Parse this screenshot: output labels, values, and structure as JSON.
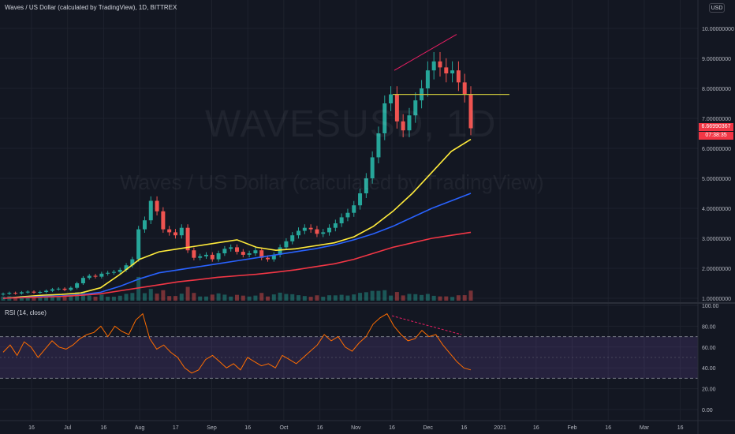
{
  "header": {
    "title": "Waves / US Dollar (calculated by TradingView), 1D, BITTREX",
    "currency": "USD"
  },
  "watermark": {
    "symbol": "WAVESUSD, 1D",
    "description": "Waves / US Dollar (calculated by TradingView)"
  },
  "price_label": "6.66990367",
  "countdown_label": "07:38:35",
  "rsi_panel": {
    "title": "RSI (14, close)"
  },
  "colors": {
    "background": "#131722",
    "up": "#26a69a",
    "down": "#ef5350",
    "ma_fast": "#ffeb3b",
    "ma_mid": "#2962ff",
    "ma_slow": "#f23645",
    "rsi_line": "#ff6d00",
    "rsi_band": "#7e57c2",
    "divergence": "#e91e63"
  },
  "chart_data": [
    {
      "type": "candlestick",
      "title": "Waves / US Dollar (calculated by TradingView), 1D, BITTREX",
      "x_ticks": [
        "16",
        "Jul",
        "16",
        "Aug",
        "17",
        "Sep",
        "16",
        "Oct",
        "16",
        "Nov",
        "16",
        "Dec",
        "16",
        "2021",
        "16",
        "Feb",
        "16",
        "Mar",
        "16"
      ],
      "y_ticks": [
        "10.00000000",
        "9.00000000",
        "8.00000000",
        "7.00000000",
        "6.00000000",
        "5.00000000",
        "4.00000000",
        "3.00000000",
        "2.00000000",
        "1.00000000"
      ],
      "ylim": [
        0.9,
        10.2
      ],
      "series": [
        {
          "kind": "close",
          "values": [
            1.15,
            1.18,
            1.16,
            1.2,
            1.22,
            1.19,
            1.21,
            1.25,
            1.3,
            1.32,
            1.28,
            1.35,
            1.5,
            1.68,
            1.75,
            1.72,
            1.82,
            1.85,
            1.88,
            1.95,
            2.1,
            2.3,
            3.3,
            3.6,
            4.25,
            3.9,
            3.3,
            3.2,
            3.1,
            3.35,
            2.6,
            2.35,
            2.4,
            2.45,
            2.3,
            2.5,
            2.65,
            2.7,
            2.55,
            2.45,
            2.5,
            2.6,
            2.35,
            2.3,
            2.45,
            2.7,
            2.9,
            3.1,
            3.25,
            3.35,
            3.3,
            3.15,
            3.2,
            3.35,
            3.5,
            3.7,
            3.85,
            4.1,
            4.5,
            5.0,
            5.7,
            6.5,
            7.5,
            7.8,
            6.9,
            6.6,
            7.1,
            7.6,
            8.0,
            8.6,
            8.9,
            8.7,
            8.5,
            8.6,
            8.2,
            7.8,
            6.67
          ]
        },
        {
          "kind": "moving-average",
          "name": "",
          "values": [
            1.0,
            1.05,
            1.1,
            1.13,
            1.18,
            1.35,
            1.8,
            2.3,
            2.55,
            2.65,
            2.75,
            2.85,
            2.95,
            2.7,
            2.6,
            2.65,
            2.75,
            2.85,
            3.05,
            3.4,
            3.9,
            4.5,
            5.2,
            5.9,
            6.3
          ]
        },
        {
          "kind": "moving-average",
          "name": "",
          "values": [
            1.0,
            1.03,
            1.06,
            1.08,
            1.12,
            1.2,
            1.4,
            1.65,
            1.85,
            1.95,
            2.05,
            2.15,
            2.25,
            2.35,
            2.45,
            2.55,
            2.65,
            2.78,
            2.95,
            3.15,
            3.4,
            3.7,
            4.0,
            4.25,
            4.5
          ]
        },
        {
          "kind": "moving-average",
          "name": "",
          "values": [
            1.0,
            1.02,
            1.04,
            1.06,
            1.1,
            1.15,
            1.25,
            1.35,
            1.45,
            1.55,
            1.62,
            1.7,
            1.75,
            1.8,
            1.87,
            1.95,
            2.05,
            2.15,
            2.3,
            2.5,
            2.7,
            2.85,
            3.0,
            3.1,
            3.2
          ]
        }
      ],
      "annotations": [
        {
          "kind": "horizontal-level",
          "y": 7.8
        },
        {
          "kind": "divergence-line",
          "from": 8.6,
          "to": 9.8
        }
      ]
    },
    {
      "type": "line",
      "title": "RSI (14, close)",
      "y_ticks": [
        "100.00",
        "80.00",
        "60.00",
        "40.00",
        "20.00",
        "0.00"
      ],
      "ylim": [
        -5,
        100
      ],
      "band": [
        30,
        70
      ],
      "series": [
        {
          "kind": "rsi",
          "values": [
            55,
            62,
            52,
            65,
            60,
            50,
            58,
            66,
            60,
            58,
            62,
            68,
            72,
            74,
            80,
            70,
            80,
            75,
            72,
            86,
            92,
            68,
            58,
            62,
            55,
            50,
            40,
            35,
            38,
            48,
            52,
            46,
            40,
            44,
            38,
            50,
            46,
            42,
            44,
            40,
            52,
            48,
            44,
            50,
            56,
            62,
            72,
            66,
            70,
            60,
            56,
            64,
            70,
            82,
            88,
            92,
            80,
            72,
            66,
            68,
            76,
            70,
            72,
            62,
            54,
            46,
            40,
            38
          ]
        }
      ],
      "annotations": [
        {
          "kind": "divergence-line",
          "from": 90,
          "to": 72
        }
      ]
    }
  ]
}
